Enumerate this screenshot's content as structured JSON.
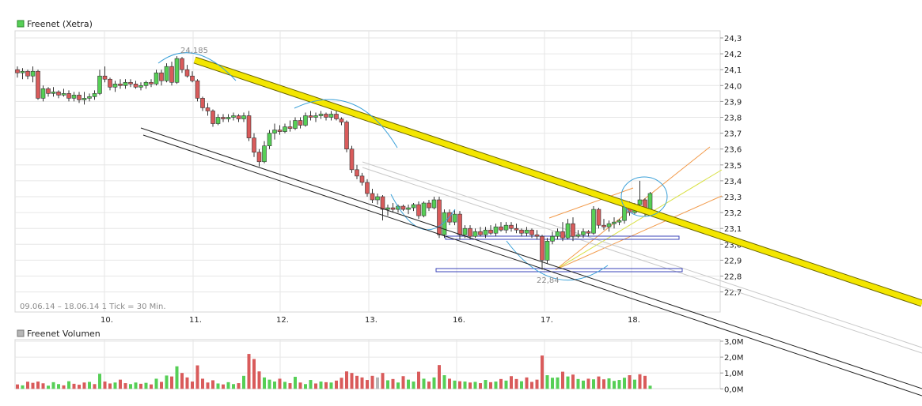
{
  "colors": {
    "up": "#56cf56",
    "down": "#d95b5b",
    "vol_neutral": "#b6b6b6",
    "grid": "#e6e6e6",
    "trend_yellow": "#f3e600",
    "annot_blue": "#3aa0d8",
    "box_blue": "#3a43b8",
    "fan_orange": "#f29a4a",
    "fan_yellow": "#d8e040"
  },
  "chart_data": [
    {
      "type": "candlestick",
      "title": "Freenet (Xetra)",
      "footnote": "09.06.14 – 18.06.14   1 Tick = 30 Min.",
      "ylim": [
        22.6,
        24.35
      ],
      "y_ticks": [
        "24,3",
        "24,2",
        "24,1",
        "24,0",
        "23,9",
        "23,8",
        "23,7",
        "23,6",
        "23,5",
        "23,4",
        "23,3",
        "23,2",
        "23,1",
        "23,0",
        "22,9",
        "22,8",
        "22,7"
      ],
      "x_ticks": [
        "10.",
        "11.",
        "12.",
        "13.",
        "16.",
        "17.",
        "18."
      ],
      "annotations": [
        "24,185",
        "22,84"
      ],
      "grid": true,
      "candles": [
        [
          24.1,
          24.12,
          24.05,
          24.08
        ],
        [
          24.08,
          24.11,
          24.04,
          24.09
        ],
        [
          24.09,
          24.1,
          24.04,
          24.06
        ],
        [
          24.06,
          24.12,
          24.02,
          24.09
        ],
        [
          24.09,
          24.1,
          23.91,
          23.92
        ],
        [
          23.92,
          24.0,
          23.9,
          23.98
        ],
        [
          23.98,
          23.99,
          23.93,
          23.95
        ],
        [
          23.95,
          23.99,
          23.93,
          23.96
        ],
        [
          23.96,
          23.97,
          23.92,
          23.94
        ],
        [
          23.94,
          23.98,
          23.93,
          23.95
        ],
        [
          23.95,
          23.97,
          23.9,
          23.92
        ],
        [
          23.92,
          23.96,
          23.9,
          23.94
        ],
        [
          23.94,
          23.96,
          23.89,
          23.91
        ],
        [
          23.91,
          23.96,
          23.88,
          23.92
        ],
        [
          23.92,
          23.95,
          23.9,
          23.93
        ],
        [
          23.93,
          23.97,
          23.91,
          23.95
        ],
        [
          23.95,
          24.1,
          23.94,
          24.06
        ],
        [
          24.06,
          24.12,
          24.02,
          24.04
        ],
        [
          24.04,
          24.05,
          23.97,
          23.99
        ],
        [
          23.99,
          24.03,
          23.96,
          24.01
        ],
        [
          24.01,
          24.04,
          23.98,
          24.0
        ],
        [
          24.0,
          24.04,
          23.98,
          24.02
        ],
        [
          24.02,
          24.04,
          23.99,
          24.01
        ],
        [
          24.01,
          24.03,
          23.98,
          23.99
        ],
        [
          23.99,
          24.02,
          23.97,
          24.0
        ],
        [
          24.0,
          24.03,
          23.98,
          24.02
        ],
        [
          24.02,
          24.04,
          23.99,
          24.01
        ],
        [
          24.01,
          24.1,
          24.0,
          24.08
        ],
        [
          24.08,
          24.1,
          24.0,
          24.03
        ],
        [
          24.03,
          24.14,
          24.02,
          24.12
        ],
        [
          24.12,
          24.15,
          24.0,
          24.02
        ],
        [
          24.02,
          24.185,
          24.01,
          24.17
        ],
        [
          24.17,
          24.18,
          24.08,
          24.1
        ],
        [
          24.1,
          24.13,
          24.05,
          24.06
        ],
        [
          24.06,
          24.09,
          24.02,
          24.03
        ],
        [
          24.03,
          24.04,
          23.9,
          23.92
        ],
        [
          23.92,
          23.93,
          23.84,
          23.86
        ],
        [
          23.86,
          23.89,
          23.81,
          23.84
        ],
        [
          23.84,
          23.85,
          23.74,
          23.76
        ],
        [
          23.76,
          23.82,
          23.75,
          23.8
        ],
        [
          23.8,
          23.82,
          23.77,
          23.79
        ],
        [
          23.79,
          23.82,
          23.77,
          23.8
        ],
        [
          23.8,
          23.83,
          23.78,
          23.81
        ],
        [
          23.81,
          23.82,
          23.77,
          23.79
        ],
        [
          23.79,
          23.83,
          23.77,
          23.81
        ],
        [
          23.81,
          23.84,
          23.65,
          23.67
        ],
        [
          23.67,
          23.7,
          23.55,
          23.58
        ],
        [
          23.58,
          23.6,
          23.49,
          23.52
        ],
        [
          23.52,
          23.65,
          23.51,
          23.62
        ],
        [
          23.62,
          23.72,
          23.6,
          23.7
        ],
        [
          23.7,
          23.76,
          23.66,
          23.72
        ],
        [
          23.72,
          23.75,
          23.69,
          23.71
        ],
        [
          23.71,
          23.76,
          23.7,
          23.74
        ],
        [
          23.74,
          23.78,
          23.71,
          23.73
        ],
        [
          23.73,
          23.8,
          23.72,
          23.78
        ],
        [
          23.78,
          23.8,
          23.73,
          23.75
        ],
        [
          23.75,
          23.83,
          23.74,
          23.81
        ],
        [
          23.81,
          23.84,
          23.78,
          23.8
        ],
        [
          23.8,
          23.83,
          23.77,
          23.81
        ],
        [
          23.81,
          23.84,
          23.79,
          23.82
        ],
        [
          23.82,
          23.83,
          23.78,
          23.8
        ],
        [
          23.8,
          23.84,
          23.78,
          23.82
        ],
        [
          23.82,
          23.85,
          23.78,
          23.79
        ],
        [
          23.79,
          23.8,
          23.75,
          23.77
        ],
        [
          23.77,
          23.78,
          23.58,
          23.6
        ],
        [
          23.6,
          23.62,
          23.45,
          23.47
        ],
        [
          23.47,
          23.5,
          23.41,
          23.43
        ],
        [
          23.43,
          23.45,
          23.37,
          23.39
        ],
        [
          23.39,
          23.41,
          23.3,
          23.32
        ],
        [
          23.32,
          23.35,
          23.26,
          23.28
        ],
        [
          23.28,
          23.32,
          23.25,
          23.3
        ],
        [
          23.3,
          23.31,
          23.15,
          23.22
        ],
        [
          23.22,
          23.25,
          23.18,
          23.23
        ],
        [
          23.23,
          23.26,
          23.2,
          23.22
        ],
        [
          23.22,
          23.25,
          23.2,
          23.24
        ],
        [
          23.24,
          23.25,
          23.21,
          23.22
        ],
        [
          23.22,
          23.25,
          23.19,
          23.23
        ],
        [
          23.23,
          23.26,
          23.21,
          23.25
        ],
        [
          23.25,
          23.27,
          23.16,
          23.18
        ],
        [
          23.18,
          23.27,
          23.17,
          23.26
        ],
        [
          23.26,
          23.28,
          23.21,
          23.23
        ],
        [
          23.23,
          23.3,
          23.22,
          23.28
        ],
        [
          23.28,
          23.3,
          23.04,
          23.06
        ],
        [
          23.06,
          23.22,
          23.04,
          23.2
        ],
        [
          23.2,
          23.22,
          23.12,
          23.14
        ],
        [
          23.14,
          23.22,
          23.12,
          23.19
        ],
        [
          23.19,
          23.21,
          23.03,
          23.06
        ],
        [
          23.06,
          23.12,
          23.04,
          23.1
        ],
        [
          23.1,
          23.12,
          23.03,
          23.05
        ],
        [
          23.05,
          23.1,
          23.04,
          23.08
        ],
        [
          23.08,
          23.11,
          23.05,
          23.06
        ],
        [
          23.06,
          23.11,
          23.04,
          23.09
        ],
        [
          23.09,
          23.12,
          23.06,
          23.07
        ],
        [
          23.07,
          23.13,
          23.05,
          23.11
        ],
        [
          23.11,
          23.14,
          23.08,
          23.09
        ],
        [
          23.09,
          23.14,
          23.07,
          23.12
        ],
        [
          23.12,
          23.14,
          23.08,
          23.1
        ],
        [
          23.1,
          23.13,
          23.07,
          23.09
        ],
        [
          23.09,
          23.1,
          23.05,
          23.07
        ],
        [
          23.07,
          23.11,
          23.05,
          23.09
        ],
        [
          23.09,
          23.1,
          23.04,
          23.06
        ],
        [
          23.06,
          23.09,
          23.03,
          23.05
        ],
        [
          23.05,
          23.06,
          22.84,
          22.9
        ],
        [
          22.9,
          23.04,
          22.88,
          23.02
        ],
        [
          23.02,
          23.08,
          23.0,
          23.05
        ],
        [
          23.05,
          23.1,
          23.03,
          23.08
        ],
        [
          23.08,
          23.14,
          23.02,
          23.04
        ],
        [
          23.04,
          23.16,
          23.03,
          23.13
        ],
        [
          23.13,
          23.17,
          23.02,
          23.05
        ],
        [
          23.05,
          23.09,
          23.04,
          23.06
        ],
        [
          23.06,
          23.1,
          23.04,
          23.08
        ],
        [
          23.08,
          23.09,
          23.05,
          23.07
        ],
        [
          23.07,
          23.24,
          23.06,
          23.22
        ],
        [
          23.22,
          23.23,
          23.1,
          23.12
        ],
        [
          23.12,
          23.16,
          23.09,
          23.11
        ],
        [
          23.11,
          23.15,
          23.08,
          23.13
        ],
        [
          23.13,
          23.17,
          23.1,
          23.14
        ],
        [
          23.14,
          23.16,
          23.12,
          23.15
        ],
        [
          23.15,
          23.25,
          23.13,
          23.24
        ],
        [
          23.24,
          23.27,
          23.18,
          23.2
        ],
        [
          23.2,
          23.26,
          23.19,
          23.25
        ],
        [
          23.25,
          23.4,
          23.24,
          23.28
        ],
        [
          23.28,
          23.29,
          23.18,
          23.22
        ],
        [
          23.22,
          23.33,
          23.21,
          23.32
        ]
      ]
    },
    {
      "type": "bar",
      "title": "Freenet Volumen",
      "ylim": [
        0,
        3.0
      ],
      "y_ticks": [
        "3,0M",
        "2,0M",
        "1,0M",
        "0,0M"
      ],
      "values": [
        0.28,
        0.22,
        0.45,
        0.38,
        0.46,
        0.35,
        0.2,
        0.42,
        0.3,
        0.22,
        0.48,
        0.32,
        0.26,
        0.4,
        0.44,
        0.3,
        0.95,
        0.46,
        0.34,
        0.4,
        0.58,
        0.36,
        0.3,
        0.4,
        0.32,
        0.38,
        0.28,
        0.64,
        0.44,
        0.84,
        0.78,
        1.42,
        1.0,
        0.72,
        0.46,
        1.48,
        0.64,
        0.4,
        0.54,
        0.34,
        0.28,
        0.42,
        0.3,
        0.36,
        0.82,
        2.2,
        1.88,
        1.1,
        0.72,
        0.58,
        0.46,
        0.64,
        0.44,
        0.36,
        0.76,
        0.4,
        0.3,
        0.56,
        0.34,
        0.46,
        0.42,
        0.4,
        0.52,
        0.7,
        1.1,
        1.0,
        0.82,
        0.72,
        0.56,
        0.82,
        0.72,
        1.0,
        0.54,
        0.62,
        0.4,
        0.8,
        0.58,
        0.46,
        1.08,
        0.64,
        0.46,
        0.72,
        1.5,
        0.86,
        0.64,
        0.52,
        0.48,
        0.46,
        0.4,
        0.44,
        0.36,
        0.56,
        0.42,
        0.46,
        0.62,
        0.52,
        0.8,
        0.62,
        0.48,
        0.72,
        0.44,
        0.58,
        2.1,
        0.86,
        0.7,
        0.72,
        1.08,
        0.78,
        0.9,
        0.62,
        0.52,
        0.64,
        0.6,
        0.78,
        0.6,
        0.66,
        0.5,
        0.56,
        0.7,
        0.86,
        0.58,
        0.92,
        0.82,
        0.2
      ],
      "value_colors": [
        "d",
        "g",
        "d",
        "d",
        "d",
        "d",
        "g",
        "g",
        "g",
        "d",
        "g",
        "d",
        "d",
        "d",
        "g",
        "d",
        "g",
        "d",
        "d",
        "g",
        "d",
        "d",
        "g",
        "g",
        "d",
        "g",
        "d",
        "g",
        "d",
        "g",
        "d",
        "g",
        "d",
        "d",
        "d",
        "d",
        "d",
        "d",
        "d",
        "g",
        "d",
        "g",
        "g",
        "d",
        "g",
        "d",
        "d",
        "d",
        "g",
        "g",
        "g",
        "d",
        "g",
        "d",
        "g",
        "d",
        "g",
        "g",
        "d",
        "g",
        "d",
        "g",
        "d",
        "d",
        "d",
        "d",
        "d",
        "d",
        "d",
        "d",
        "n",
        "d",
        "g",
        "d",
        "g",
        "d",
        "g",
        "g",
        "d",
        "g",
        "d",
        "g",
        "d",
        "g",
        "d",
        "g",
        "d",
        "g",
        "d",
        "g",
        "d",
        "g",
        "d",
        "g",
        "d",
        "g",
        "d",
        "d",
        "g",
        "d",
        "d",
        "d",
        "d",
        "g",
        "g",
        "g",
        "d",
        "g",
        "d",
        "g",
        "g",
        "d",
        "g",
        "d",
        "d",
        "g",
        "g",
        "g",
        "g",
        "d",
        "g",
        "d",
        "d",
        "g"
      ]
    }
  ]
}
